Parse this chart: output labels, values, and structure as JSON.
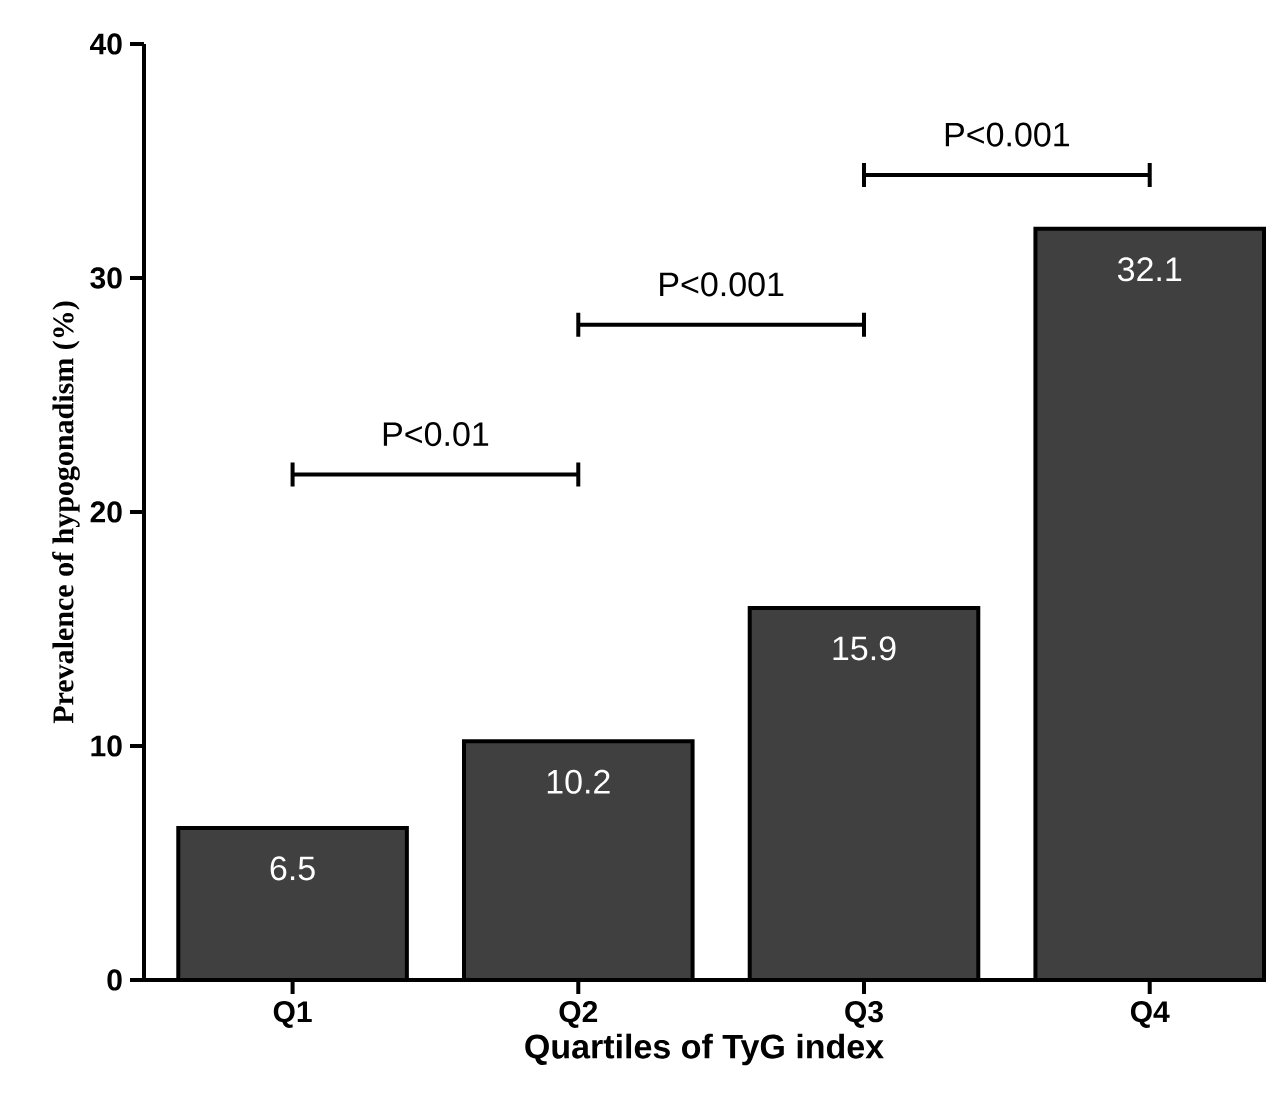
{
  "chart_data": {
    "type": "bar",
    "xlabel": "Quartiles of  TyG index",
    "ylabel": "Prevalence of hypogonadism  (%)",
    "categories": [
      "Q1",
      "Q2",
      "Q3",
      "Q4"
    ],
    "values": [
      6.5,
      10.2,
      15.9,
      32.1
    ],
    "color": "#404040",
    "ylim": [
      0,
      40
    ],
    "yticks": [
      0,
      10,
      20,
      30,
      40
    ],
    "data_labels": true,
    "grid": false,
    "annotations": [
      "P<0.01",
      "P<0.001",
      "P<0.001"
    ]
  }
}
